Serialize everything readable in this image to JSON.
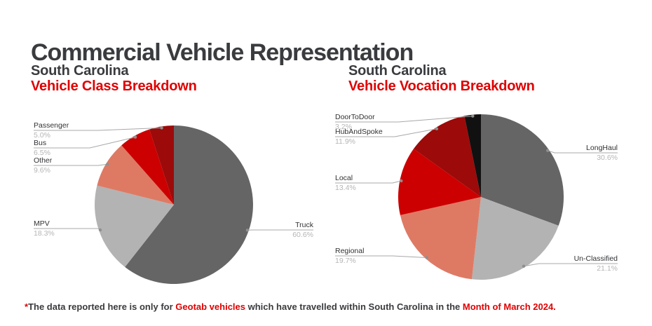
{
  "page": {
    "title": "Commercial Vehicle Representation",
    "footnote": {
      "marker": "*",
      "text_1": "The data reported here is only for ",
      "highlight_1": "Geotab vehicles",
      "text_2": " which have travelled within South Carolina in the ",
      "highlight_2": "Month of March 2024."
    },
    "colors": {
      "accent_red": "#e00000",
      "heading_gray": "#3a3b3e",
      "pct_gray": "#b5b5b5"
    }
  },
  "charts": [
    {
      "region": "South Carolina",
      "subtitle": "Vehicle Class Breakdown"
    },
    {
      "region": "South Carolina",
      "subtitle": "Vehicle Vocation Breakdown"
    }
  ],
  "chart_data": [
    {
      "type": "pie",
      "title": "South Carolina Vehicle Class Breakdown",
      "categories": [
        "Truck",
        "MPV",
        "Other",
        "Bus",
        "Passenger"
      ],
      "values": [
        60.6,
        18.3,
        9.6,
        6.5,
        5.0
      ],
      "labels": [
        "60.6%",
        "18.3%",
        "9.6%",
        "6.5%",
        "5.0%"
      ],
      "colors": [
        "#656565",
        "#b3b3b3",
        "#de7a64",
        "#cc0000",
        "#9c0a0a"
      ],
      "unit": "percent",
      "start_angle": "12-oclock",
      "direction": "clockwise",
      "legend": "none"
    },
    {
      "type": "pie",
      "title": "South Carolina Vehicle Vocation Breakdown",
      "categories": [
        "LongHaul",
        "Un-Classified",
        "Regional",
        "Local",
        "HubAndSpoke",
        "DoorToDoor"
      ],
      "values": [
        30.6,
        21.1,
        19.7,
        13.4,
        11.9,
        3.2
      ],
      "labels": [
        "30.6%",
        "21.1%",
        "19.7%",
        "13.4%",
        "11.9%",
        "3.2%"
      ],
      "colors": [
        "#656565",
        "#b3b3b3",
        "#de7a64",
        "#cc0000",
        "#9c0a0a",
        "#111111"
      ],
      "unit": "percent",
      "start_angle": "12-oclock",
      "direction": "clockwise",
      "legend": "none"
    }
  ]
}
